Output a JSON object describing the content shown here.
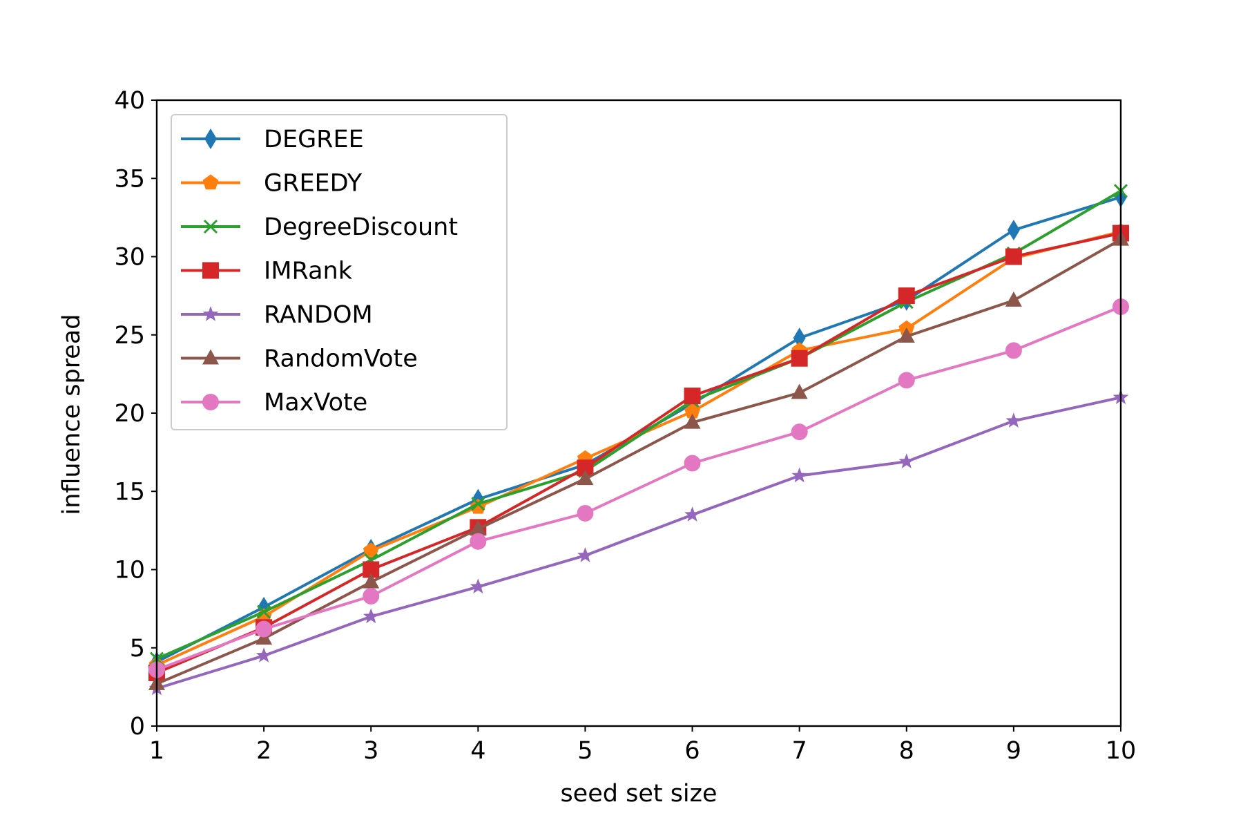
{
  "chart_data": {
    "type": "line",
    "title": "",
    "xlabel": "seed set size",
    "ylabel": "influence spread",
    "x": [
      1,
      2,
      3,
      4,
      5,
      6,
      7,
      8,
      9,
      10
    ],
    "xlim": [
      1,
      10
    ],
    "ylim": [
      0,
      40
    ],
    "xticks": [
      1,
      2,
      3,
      4,
      5,
      6,
      7,
      8,
      9,
      10
    ],
    "yticks": [
      0,
      5,
      10,
      15,
      20,
      25,
      30,
      35,
      40
    ],
    "grid": false,
    "legend_position": "upper-left",
    "series": [
      {
        "name": "DEGREE",
        "color": "#1f77b4",
        "marker": "thin-diamond",
        "values": [
          4.1,
          7.6,
          11.3,
          14.5,
          16.7,
          20.6,
          24.8,
          27.2,
          31.7,
          33.8
        ]
      },
      {
        "name": "GREEDY",
        "color": "#ff7f0e",
        "marker": "pentagon",
        "values": [
          3.9,
          7.0,
          11.2,
          14.0,
          17.1,
          20.1,
          24.0,
          25.4,
          29.9,
          31.6
        ]
      },
      {
        "name": "DegreeDiscount",
        "color": "#2ca02c",
        "marker": "x",
        "values": [
          4.3,
          7.3,
          10.6,
          14.2,
          16.3,
          20.8,
          23.5,
          27.1,
          30.2,
          34.2
        ]
      },
      {
        "name": "IMRank",
        "color": "#d62728",
        "marker": "square",
        "values": [
          3.4,
          6.3,
          10.0,
          12.7,
          16.5,
          21.1,
          23.5,
          27.5,
          30.0,
          31.5
        ]
      },
      {
        "name": "RANDOM",
        "color": "#9467bd",
        "marker": "star",
        "values": [
          2.4,
          4.5,
          7.0,
          8.9,
          10.9,
          13.5,
          16.0,
          16.9,
          19.5,
          21.0
        ]
      },
      {
        "name": "RandomVote",
        "color": "#8c564b",
        "marker": "triangle",
        "values": [
          2.7,
          5.6,
          9.2,
          12.6,
          15.8,
          19.4,
          21.3,
          24.9,
          27.2,
          31.1
        ]
      },
      {
        "name": "MaxVote",
        "color": "#e377c2",
        "marker": "circle",
        "values": [
          3.6,
          6.2,
          8.3,
          11.8,
          13.6,
          16.8,
          18.8,
          22.1,
          24.0,
          26.8
        ]
      }
    ]
  }
}
